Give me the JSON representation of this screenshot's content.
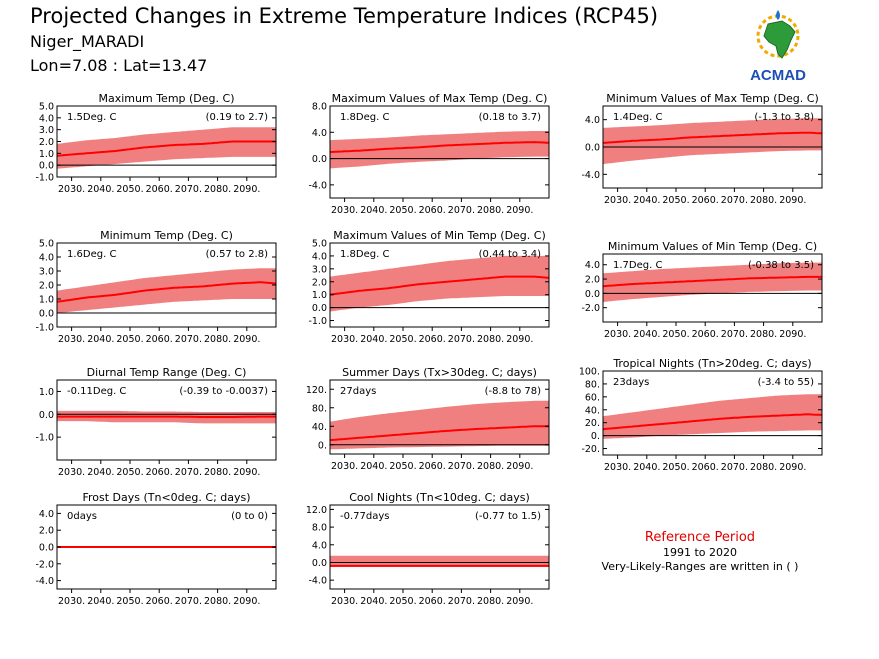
{
  "header": {
    "title": "Projected Changes in Extreme Temperature Indices (RCP45)",
    "location": "Niger_MARADI",
    "coords": "Lon=7.08 : Lat=13.47",
    "logo_text": "ACMAD"
  },
  "reference": {
    "title": "Reference Period",
    "years": "1991 to 2020",
    "note": "Very-Likely-Ranges are written in ( )"
  },
  "colors": {
    "band": "#f08080",
    "line": "#ff0000",
    "zero": "#000000"
  },
  "chart_data": [
    {
      "type": "line",
      "title": "Maximum Temp (Deg. C)",
      "mean_label": "1.5Deg. C",
      "range_label": "(0.19 to 2.7)",
      "xlim": [
        2025,
        2100
      ],
      "ylim": [
        -1.0,
        5.0
      ],
      "yticks": [
        "-1.0",
        "0.0",
        "1.0",
        "2.0",
        "3.0",
        "4.0",
        "5.0"
      ],
      "ytick_values": [
        -1,
        0,
        1,
        2,
        3,
        4,
        5
      ],
      "xticks": [
        "2030.",
        "2040.",
        "2050.",
        "2060.",
        "2070.",
        "2080.",
        "2090."
      ],
      "xtick_values": [
        2030,
        2040,
        2050,
        2060,
        2070,
        2080,
        2090
      ],
      "x": [
        2025,
        2035,
        2045,
        2055,
        2065,
        2075,
        2085,
        2095,
        2100
      ],
      "median": [
        0.8,
        1.0,
        1.2,
        1.5,
        1.7,
        1.8,
        2.0,
        2.0,
        2.0
      ],
      "low": [
        -0.3,
        -0.1,
        0.1,
        0.3,
        0.5,
        0.6,
        0.7,
        0.7,
        0.7
      ],
      "high": [
        1.8,
        2.1,
        2.3,
        2.6,
        2.8,
        3.0,
        3.2,
        3.2,
        3.2
      ]
    },
    {
      "type": "line",
      "title": "Maximum Values of Max Temp (Deg. C)",
      "mean_label": "1.8Deg. C",
      "range_label": "(0.18 to 3.7)",
      "xlim": [
        2025,
        2100
      ],
      "ylim": [
        -6.0,
        8.0
      ],
      "yticks": [
        "-4.0",
        "0.0",
        "4.0",
        "8.0"
      ],
      "ytick_values": [
        -4,
        0,
        4,
        8
      ],
      "xticks": [
        "2030.",
        "2040.",
        "2050.",
        "2060.",
        "2070.",
        "2080.",
        "2090."
      ],
      "xtick_values": [
        2030,
        2040,
        2050,
        2060,
        2070,
        2080,
        2090
      ],
      "x": [
        2025,
        2035,
        2045,
        2055,
        2065,
        2075,
        2085,
        2095,
        2100
      ],
      "median": [
        1.0,
        1.2,
        1.5,
        1.7,
        2.0,
        2.2,
        2.4,
        2.5,
        2.4
      ],
      "low": [
        -1.5,
        -1.2,
        -0.8,
        -0.5,
        -0.3,
        0.0,
        0.2,
        0.3,
        0.3
      ],
      "high": [
        2.8,
        3.0,
        3.2,
        3.5,
        3.7,
        3.9,
        4.1,
        4.2,
        4.2
      ]
    },
    {
      "type": "line",
      "title": "Minimum Values of Max Temp (Deg. C)",
      "mean_label": "1.4Deg. C",
      "range_label": "(-1.3 to 3.8)",
      "xlim": [
        2025,
        2100
      ],
      "ylim": [
        -6.0,
        6.0
      ],
      "yticks": [
        "-4.0",
        "0.0",
        "4.0"
      ],
      "ytick_values": [
        -4,
        0,
        4
      ],
      "xticks": [
        "2030.",
        "2040.",
        "2050.",
        "2060.",
        "2070.",
        "2080.",
        "2090."
      ],
      "xtick_values": [
        2030,
        2040,
        2050,
        2060,
        2070,
        2080,
        2090
      ],
      "x": [
        2025,
        2035,
        2045,
        2055,
        2065,
        2075,
        2085,
        2095,
        2100
      ],
      "median": [
        0.6,
        0.9,
        1.1,
        1.4,
        1.6,
        1.8,
        2.0,
        2.1,
        2.0
      ],
      "low": [
        -2.5,
        -2.0,
        -1.6,
        -1.2,
        -1.0,
        -0.8,
        -0.6,
        -0.5,
        -0.5
      ],
      "high": [
        2.8,
        3.0,
        3.2,
        3.5,
        3.7,
        3.9,
        4.1,
        4.2,
        4.2
      ]
    },
    {
      "type": "line",
      "title": "Minimum Temp (Deg. C)",
      "mean_label": "1.6Deg. C",
      "range_label": "(0.57 to 2.8)",
      "xlim": [
        2025,
        2100
      ],
      "ylim": [
        -1.0,
        5.0
      ],
      "yticks": [
        "-1.0",
        "0.0",
        "1.0",
        "2.0",
        "3.0",
        "4.0",
        "5.0"
      ],
      "ytick_values": [
        -1,
        0,
        1,
        2,
        3,
        4,
        5
      ],
      "xticks": [
        "2030.",
        "2040.",
        "2050.",
        "2060.",
        "2070.",
        "2080.",
        "2090."
      ],
      "xtick_values": [
        2030,
        2040,
        2050,
        2060,
        2070,
        2080,
        2090
      ],
      "x": [
        2025,
        2035,
        2045,
        2055,
        2065,
        2075,
        2085,
        2095,
        2100
      ],
      "median": [
        0.8,
        1.1,
        1.3,
        1.6,
        1.8,
        1.9,
        2.1,
        2.2,
        2.1
      ],
      "low": [
        0.0,
        0.2,
        0.4,
        0.6,
        0.8,
        0.9,
        1.0,
        1.0,
        1.0
      ],
      "high": [
        1.6,
        1.9,
        2.2,
        2.5,
        2.7,
        2.9,
        3.1,
        3.2,
        3.2
      ]
    },
    {
      "type": "line",
      "title": "Maximum Values of Min Temp (Deg. C)",
      "mean_label": "1.8Deg. C",
      "range_label": "(0.44 to 3.4)",
      "xlim": [
        2025,
        2100
      ],
      "ylim": [
        -1.5,
        5.0
      ],
      "yticks": [
        "-1.0",
        "0.0",
        "1.0",
        "2.0",
        "3.0",
        "4.0",
        "5.0"
      ],
      "ytick_values": [
        -1,
        0,
        1,
        2,
        3,
        4,
        5
      ],
      "xticks": [
        "2030.",
        "2040.",
        "2050.",
        "2060.",
        "2070.",
        "2080.",
        "2090."
      ],
      "xtick_values": [
        2030,
        2040,
        2050,
        2060,
        2070,
        2080,
        2090
      ],
      "x": [
        2025,
        2035,
        2045,
        2055,
        2065,
        2075,
        2085,
        2095,
        2100
      ],
      "median": [
        1.0,
        1.3,
        1.5,
        1.8,
        2.0,
        2.2,
        2.4,
        2.4,
        2.3
      ],
      "low": [
        -0.3,
        0.0,
        0.2,
        0.5,
        0.7,
        0.8,
        0.9,
        0.9,
        0.9
      ],
      "high": [
        2.4,
        2.7,
        3.0,
        3.3,
        3.6,
        3.8,
        4.0,
        4.0,
        4.0
      ]
    },
    {
      "type": "line",
      "title": "Minimum Values of Min Temp (Deg. C)",
      "mean_label": "1.7Deg. C",
      "range_label": "(-0.38 to 3.5)",
      "xlim": [
        2025,
        2100
      ],
      "ylim": [
        -4.0,
        5.5
      ],
      "yticks": [
        "-2.0",
        "0.0",
        "2.0",
        "4.0"
      ],
      "ytick_values": [
        -2,
        0,
        2,
        4
      ],
      "xticks": [
        "2030.",
        "2040.",
        "2050.",
        "2060.",
        "2070.",
        "2080.",
        "2090."
      ],
      "xtick_values": [
        2030,
        2040,
        2050,
        2060,
        2070,
        2080,
        2090
      ],
      "x": [
        2025,
        2035,
        2045,
        2055,
        2065,
        2075,
        2085,
        2095,
        2100
      ],
      "median": [
        1.0,
        1.3,
        1.5,
        1.7,
        1.9,
        2.1,
        2.2,
        2.3,
        2.3
      ],
      "low": [
        -1.2,
        -0.8,
        -0.5,
        -0.2,
        0.0,
        0.2,
        0.3,
        0.4,
        0.4
      ],
      "high": [
        2.8,
        3.1,
        3.4,
        3.6,
        3.8,
        4.0,
        4.2,
        4.3,
        4.3
      ]
    },
    {
      "type": "line",
      "title": "Diurnal Temp Range (Deg. C)",
      "mean_label": "-0.11Deg. C",
      "range_label": "(-0.39 to -0.0037)",
      "xlim": [
        2025,
        2100
      ],
      "ylim": [
        -2.0,
        1.5
      ],
      "yticks": [
        "-1.0",
        "0.0",
        "1.0"
      ],
      "ytick_values": [
        -1,
        0,
        1
      ],
      "xticks": [
        "2030.",
        "2040.",
        "2050.",
        "2060.",
        "2070.",
        "2080.",
        "2090."
      ],
      "xtick_values": [
        2030,
        2040,
        2050,
        2060,
        2070,
        2080,
        2090
      ],
      "x": [
        2025,
        2035,
        2045,
        2055,
        2065,
        2075,
        2085,
        2095,
        2100
      ],
      "median": [
        -0.1,
        -0.1,
        -0.1,
        -0.1,
        -0.1,
        -0.12,
        -0.12,
        -0.1,
        -0.1
      ],
      "low": [
        -0.3,
        -0.3,
        -0.35,
        -0.35,
        -0.35,
        -0.4,
        -0.4,
        -0.4,
        -0.4
      ],
      "high": [
        0.15,
        0.15,
        0.15,
        0.12,
        0.12,
        0.1,
        0.1,
        0.1,
        0.1
      ]
    },
    {
      "type": "line",
      "title": "Summer Days (Tx>30deg. C; days)",
      "mean_label": "27days",
      "range_label": "(-8.8 to 78)",
      "xlim": [
        2025,
        2100
      ],
      "ylim": [
        -20,
        140
      ],
      "yticks": [
        "0.",
        "40.",
        "80.",
        "120."
      ],
      "ytick_values": [
        0,
        40,
        80,
        120
      ],
      "xticks": [
        "2030.",
        "2040.",
        "2050.",
        "2060.",
        "2070.",
        "2080.",
        "2090."
      ],
      "xtick_values": [
        2030,
        2040,
        2050,
        2060,
        2070,
        2080,
        2090
      ],
      "x": [
        2025,
        2035,
        2045,
        2055,
        2065,
        2075,
        2085,
        2095,
        2100
      ],
      "median": [
        10,
        15,
        20,
        25,
        30,
        34,
        37,
        40,
        40
      ],
      "low": [
        -10,
        -8,
        -6,
        -5,
        -4,
        -3,
        -2,
        -2,
        -2
      ],
      "high": [
        50,
        60,
        68,
        75,
        82,
        88,
        92,
        95,
        95
      ]
    },
    {
      "type": "line",
      "title": "Tropical Nights (Tn>20deg. C; days)",
      "mean_label": "23days",
      "range_label": "(-3.4 to 55)",
      "xlim": [
        2025,
        2100
      ],
      "ylim": [
        -30,
        100
      ],
      "yticks": [
        "-20.",
        "0.",
        "20.",
        "40.",
        "60.",
        "80.",
        "100."
      ],
      "ytick_values": [
        -20,
        0,
        20,
        40,
        60,
        80,
        100
      ],
      "xticks": [
        "2030.",
        "2040.",
        "2050.",
        "2060.",
        "2070.",
        "2080.",
        "2090."
      ],
      "xtick_values": [
        2030,
        2040,
        2050,
        2060,
        2070,
        2080,
        2090
      ],
      "x": [
        2025,
        2035,
        2045,
        2055,
        2065,
        2075,
        2085,
        2095,
        2100
      ],
      "median": [
        10,
        14,
        18,
        22,
        26,
        29,
        31,
        33,
        32
      ],
      "low": [
        -5,
        -3,
        0,
        2,
        4,
        6,
        7,
        8,
        8
      ],
      "high": [
        30,
        36,
        42,
        48,
        54,
        58,
        62,
        64,
        64
      ]
    },
    {
      "type": "line",
      "title": "Frost Days (Tn<0deg. C; days)",
      "mean_label": "0days",
      "range_label": "(0 to 0)",
      "xlim": [
        2025,
        2100
      ],
      "ylim": [
        -5.0,
        5.0
      ],
      "yticks": [
        "-4.0",
        "-2.0",
        "0.0",
        "2.0",
        "4.0"
      ],
      "ytick_values": [
        -4,
        -2,
        0,
        2,
        4
      ],
      "xticks": [
        "2030.",
        "2040.",
        "2050.",
        "2060.",
        "2070.",
        "2080.",
        "2090."
      ],
      "xtick_values": [
        2030,
        2040,
        2050,
        2060,
        2070,
        2080,
        2090
      ],
      "x": [
        2025,
        2100
      ],
      "median": [
        0,
        0
      ],
      "low": [
        0,
        0
      ],
      "high": [
        0,
        0
      ]
    },
    {
      "type": "line",
      "title": "Cool Nights (Tn<10deg. C; days)",
      "mean_label": "-0.77days",
      "range_label": "(-0.77 to 1.5)",
      "xlim": [
        2025,
        2100
      ],
      "ylim": [
        -6.0,
        13.0
      ],
      "yticks": [
        "-4.0",
        "0.0",
        "4.0",
        "8.0",
        "12.0"
      ],
      "ytick_values": [
        -4,
        0,
        4,
        8,
        12
      ],
      "xticks": [
        "2030.",
        "2040.",
        "2050.",
        "2060.",
        "2070.",
        "2080.",
        "2090."
      ],
      "xtick_values": [
        2030,
        2040,
        2050,
        2060,
        2070,
        2080,
        2090
      ],
      "x": [
        2025,
        2035,
        2045,
        2055,
        2065,
        2075,
        2085,
        2095,
        2100
      ],
      "median": [
        -0.77,
        -0.77,
        -0.77,
        -0.77,
        -0.77,
        -0.77,
        -0.77,
        -0.77,
        -0.77
      ],
      "low": [
        -1.0,
        -1.0,
        -1.0,
        -1.0,
        -1.0,
        -1.0,
        -1.0,
        -1.0,
        -1.0
      ],
      "high": [
        1.5,
        1.5,
        1.5,
        1.5,
        1.5,
        1.5,
        1.5,
        1.5,
        1.5
      ]
    }
  ]
}
